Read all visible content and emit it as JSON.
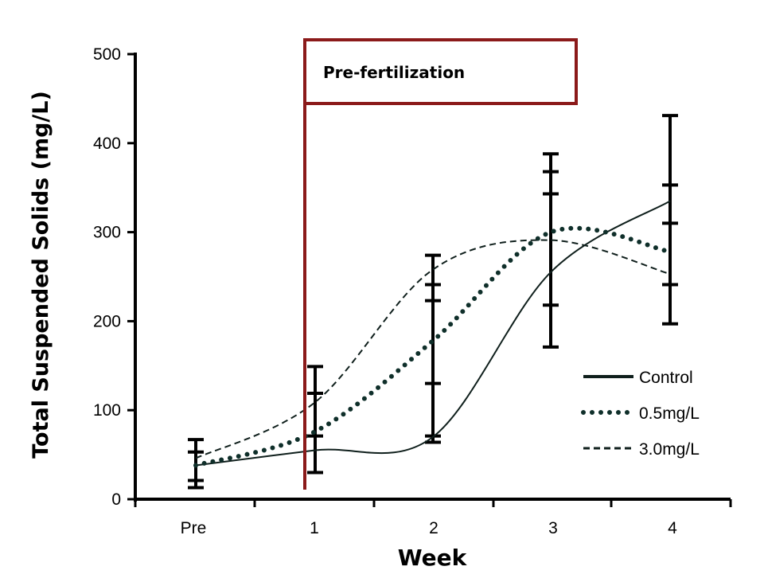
{
  "chart_data": {
    "type": "line",
    "title": "",
    "xlabel": "Week",
    "ylabel": "Total Suspended Solids (mg/L)",
    "categories": [
      "Pre",
      "1",
      "2",
      "3",
      "4"
    ],
    "ylim": [
      0,
      500
    ],
    "yticks": [
      0,
      100,
      200,
      300,
      400,
      500
    ],
    "grid": false,
    "legend_position": "bottom-right",
    "annotation": {
      "label": "Pre-fertilization",
      "at_week": "1",
      "color": "#8b1a1a"
    },
    "series": [
      {
        "name": "Control",
        "style": "solid",
        "color": "#0f1f1c",
        "values": [
          38,
          55,
          70,
          255,
          335
        ]
      },
      {
        "name": "0.5mg/L",
        "style": "dotted",
        "color": "#0f2f2a",
        "values": [
          38,
          76,
          178,
          300,
          278
        ]
      },
      {
        "name": "3.0mg/L",
        "style": "dashed",
        "color": "#0f1f1c",
        "values": [
          46,
          109,
          258,
          291,
          253
        ]
      }
    ],
    "error_bar_caps": [
      [
        13,
        21,
        53,
        67
      ],
      [
        30,
        71,
        119,
        149
      ],
      [
        64,
        71,
        130,
        223,
        241,
        274
      ],
      [
        171,
        218,
        343,
        368,
        388
      ],
      [
        197,
        241,
        310,
        353,
        431
      ]
    ]
  }
}
